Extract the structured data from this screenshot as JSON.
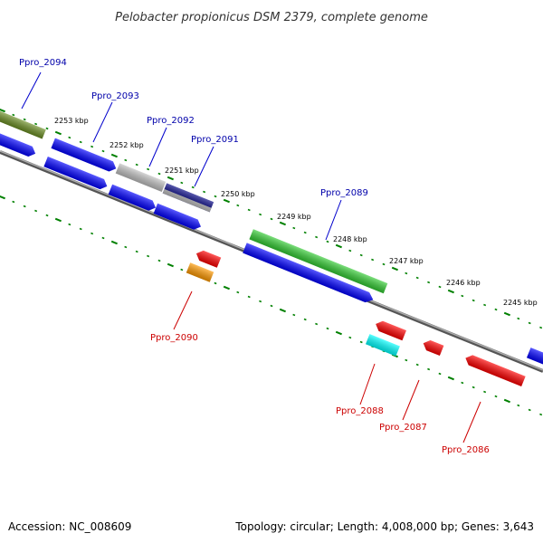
{
  "title": "Pelobacter propionicus DSM 2379, complete genome",
  "footer": {
    "accession": "Accession: NC_008609",
    "summary": "Topology: circular; Length: 4,008,000 bp; Genes: 3,643"
  },
  "ticks": [
    {
      "label": "2253 kbp"
    },
    {
      "label": "2252 kbp"
    },
    {
      "label": "2251 kbp"
    },
    {
      "label": "2250 kbp"
    },
    {
      "label": "2249 kbp"
    },
    {
      "label": "2248 kbp"
    },
    {
      "label": "2247 kbp"
    },
    {
      "label": "2246 kbp"
    },
    {
      "label": "2245 kbp"
    }
  ],
  "gene_labels": {
    "top": [
      {
        "name": "Ppro_2094"
      },
      {
        "name": "Ppro_2093"
      },
      {
        "name": "Ppro_2092"
      },
      {
        "name": "Ppro_2091"
      },
      {
        "name": "Ppro_2089"
      }
    ],
    "bottom": [
      {
        "name": "Ppro_2090"
      },
      {
        "name": "Ppro_2088"
      },
      {
        "name": "Ppro_2087"
      },
      {
        "name": "Ppro_2086"
      }
    ]
  },
  "colors": {
    "backbone": "#777777",
    "tick": "#008000",
    "blue": "#0000ff",
    "olive": "#6b8e23",
    "gray": "#c0c0c0",
    "navy": "#000080",
    "green": "#33cc33",
    "red": "#ff0000",
    "orange": "#ff9900",
    "cyan": "#00ffff"
  }
}
